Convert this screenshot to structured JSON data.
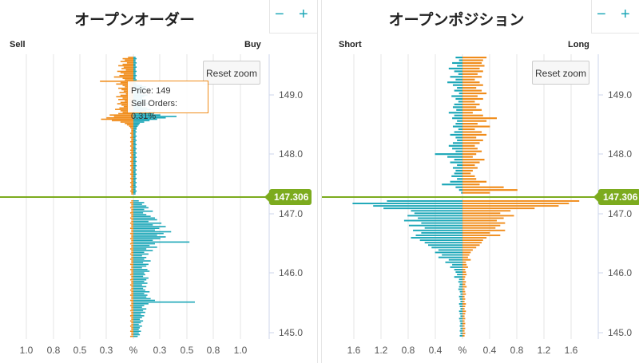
{
  "colors": {
    "sell": "#f08c1a",
    "buy": "#1aa6b7",
    "price_line": "#7cab1e",
    "grid": "#e6e6e6"
  },
  "zoom": {
    "minus": "−",
    "plus": "+"
  },
  "reset_zoom_label": "Reset zoom",
  "current_price": "147.306",
  "tooltip": {
    "price_line": "Price: 149",
    "value_line": "Sell Orders: 0.31%"
  },
  "chart_data": [
    {
      "type": "bar",
      "title": "オープンオーダー",
      "left_label": "Sell",
      "right_label": "Buy",
      "y_ticks": [
        "149.0",
        "148.0",
        "147.0",
        "146.0",
        "145.0"
      ],
      "x_ticks": [
        "1.0",
        "0.8",
        "0.5",
        "0.3",
        "%",
        "0.3",
        "0.5",
        "0.8",
        "1.0"
      ],
      "current_price": 147.306,
      "series": [
        {
          "name": "Sell",
          "values": [
            0.05,
            0.1,
            0.08,
            0.12,
            0.06,
            0.1,
            0.14,
            0.09,
            0.11,
            0.07,
            0.15,
            0.12,
            0.09,
            0.13,
            0.18,
            0.1,
            0.08,
            0.31,
            0.12,
            0.16,
            0.1,
            0.08,
            0.14,
            0.11,
            0.09,
            0.13,
            0.07,
            0.12,
            0.16,
            0.1,
            0.14,
            0.08,
            0.12,
            0.15,
            0.11,
            0.09,
            0.13,
            0.17,
            0.12,
            0.1,
            0.14,
            0.22,
            0.18,
            0.25,
            0.3,
            0.2,
            0.12,
            0.08,
            0.06,
            0.04,
            0.03,
            0.02,
            0.02,
            0.02,
            0.03,
            0.02,
            0.02,
            0.03,
            0.02,
            0.02,
            0.03,
            0.02,
            0.02,
            0.03,
            0.02,
            0.02,
            0.03,
            0.02,
            0.03,
            0.02,
            0.02,
            0.03,
            0.02,
            0.02,
            0.03,
            0.02,
            0.02,
            0.03,
            0.02,
            0.02,
            0.03,
            0.02,
            0.02,
            0.03,
            0.02,
            0.02,
            0.03,
            0.02,
            0.02,
            0.03,
            0.02,
            0.02,
            0.03,
            0.02,
            0.02,
            0.03,
            0.02,
            0.02
          ]
        },
        {
          "name": "Buy",
          "values": [
            0.02,
            0.03,
            0.02,
            0.02,
            0.03,
            0.02,
            0.02,
            0.03,
            0.02,
            0.02,
            0.03,
            0.02,
            0.02,
            0.03,
            0.02,
            0.02,
            0.03,
            0.02,
            0.02,
            0.03,
            0.08,
            0.12,
            0.1,
            0.14,
            0.09,
            0.11,
            0.07,
            0.13,
            0.1,
            0.08,
            0.12,
            0.09,
            0.11,
            0.14,
            0.1,
            0.08,
            0.13,
            0.16,
            0.12,
            0.2,
            0.18,
            0.25,
            0.4,
            0.3,
            0.22,
            0.15,
            0.1,
            0.06,
            0.05,
            0.04,
            0.03,
            0.03,
            0.02,
            0.03,
            0.02,
            0.02,
            0.03,
            0.02,
            0.02,
            0.03,
            0.02,
            0.02,
            0.03,
            0.02,
            0.02,
            0.03,
            0.02,
            0.02,
            0.03,
            0.02,
            0.02,
            0.03,
            0.02,
            0.02,
            0.03,
            0.02,
            0.02,
            0.03,
            0.02,
            0.02,
            0.03,
            0.02,
            0.02,
            0.03,
            0.02,
            0.02,
            0.03,
            0.02,
            0.02,
            0.03,
            0.02,
            0.02,
            0.03,
            0.02,
            0.02,
            0.03,
            0.02,
            0.02
          ]
        }
      ],
      "series_lower": [
        {
          "name": "Sell",
          "values": [
            0.02,
            0.03,
            0.02,
            0.02,
            0.03,
            0.02,
            0.02,
            0.03,
            0.02,
            0.02,
            0.03,
            0.02,
            0.02,
            0.03,
            0.02,
            0.02,
            0.03,
            0.02,
            0.02,
            0.03,
            0.02,
            0.02,
            0.03,
            0.02,
            0.02,
            0.03,
            0.02,
            0.02,
            0.03,
            0.02,
            0.02,
            0.03,
            0.02,
            0.02,
            0.03,
            0.02,
            0.02,
            0.03,
            0.02,
            0.02,
            0.03,
            0.02,
            0.02,
            0.03,
            0.02,
            0.02,
            0.03,
            0.02,
            0.02,
            0.03,
            0.02,
            0.02,
            0.03,
            0.02,
            0.02,
            0.03,
            0.02,
            0.02,
            0.03,
            0.02,
            0.02,
            0.03,
            0.02,
            0.02,
            0.03,
            0.02,
            0.02,
            0.03,
            0.02,
            0.02,
            0.03,
            0.02,
            0.02,
            0.03,
            0.02,
            0.02,
            0.03,
            0.02,
            0.02,
            0.03
          ]
        },
        {
          "name": "Buy",
          "values": [
            0.05,
            0.1,
            0.08,
            0.12,
            0.14,
            0.1,
            0.18,
            0.09,
            0.12,
            0.16,
            0.2,
            0.22,
            0.14,
            0.26,
            0.18,
            0.3,
            0.24,
            0.2,
            0.35,
            0.28,
            0.22,
            0.3,
            0.25,
            0.18,
            0.52,
            0.2,
            0.15,
            0.22,
            0.12,
            0.18,
            0.1,
            0.14,
            0.08,
            0.12,
            0.1,
            0.16,
            0.09,
            0.14,
            0.12,
            0.08,
            0.13,
            0.15,
            0.1,
            0.11,
            0.09,
            0.14,
            0.12,
            0.1,
            0.13,
            0.08,
            0.12,
            0.09,
            0.11,
            0.15,
            0.1,
            0.13,
            0.12,
            0.16,
            0.2,
            0.57,
            0.14,
            0.1,
            0.08,
            0.12,
            0.09,
            0.11,
            0.07,
            0.1,
            0.08,
            0.06,
            0.09,
            0.07,
            0.05,
            0.08,
            0.06,
            0.05,
            0.07,
            0.05,
            0.06,
            0.04
          ]
        }
      ]
    },
    {
      "type": "bar",
      "title": "オープンポジション",
      "left_label": "Short",
      "right_label": "Long",
      "y_ticks": [
        "149.0",
        "148.0",
        "147.0",
        "146.0",
        "145.0"
      ],
      "x_ticks": [
        "1.6",
        "1.2",
        "0.8",
        "0.4",
        "%",
        "0.4",
        "0.8",
        "1.2",
        "1.6"
      ],
      "current_price": 147.306,
      "series": [
        {
          "name": "Short",
          "values": [
            0.1,
            0.05,
            0.15,
            0.08,
            0.2,
            0.12,
            0.06,
            0.18,
            0.1,
            0.22,
            0.14,
            0.08,
            0.12,
            0.05,
            0.16,
            0.1,
            0.06,
            0.12,
            0.14,
            0.09,
            0.2,
            0.12,
            0.15,
            0.08,
            0.1,
            0.14,
            0.06,
            0.12,
            0.18,
            0.1,
            0.08,
            0.14,
            0.2,
            0.15,
            0.1,
            0.4,
            0.22,
            0.12,
            0.18,
            0.08,
            0.14,
            0.1,
            0.12,
            0.16,
            0.08,
            0.18,
            0.3,
            0.1,
            0.05,
            0.02
          ]
        },
        {
          "name": "Long",
          "values": [
            0.35,
            0.3,
            0.28,
            0.32,
            0.25,
            0.3,
            0.22,
            0.28,
            0.18,
            0.25,
            0.3,
            0.2,
            0.28,
            0.35,
            0.22,
            0.3,
            0.18,
            0.25,
            0.2,
            0.28,
            0.15,
            0.3,
            0.5,
            0.35,
            0.22,
            0.4,
            0.18,
            0.28,
            0.35,
            0.2,
            0.3,
            0.25,
            0.18,
            0.22,
            0.28,
            0.2,
            0.15,
            0.32,
            0.25,
            0.18,
            0.22,
            0.15,
            0.12,
            0.18,
            0.2,
            0.35,
            0.25,
            0.6,
            0.8,
            0.4
          ]
        }
      ],
      "series_lower": [
        {
          "name": "Short",
          "values": [
            1.1,
            1.6,
            1.3,
            1.15,
            0.75,
            0.7,
            0.8,
            0.65,
            0.85,
            0.6,
            0.78,
            0.55,
            0.72,
            0.6,
            0.68,
            0.75,
            0.62,
            0.55,
            0.5,
            0.45,
            0.35,
            0.4,
            0.3,
            0.35,
            0.2,
            0.25,
            0.15,
            0.18,
            0.12,
            0.1,
            0.08,
            0.12,
            0.05,
            0.06,
            0.04,
            0.05,
            0.06,
            0.04,
            0.03,
            0.05,
            0.04,
            0.03,
            0.05,
            0.04,
            0.03,
            0.05,
            0.04,
            0.03,
            0.05,
            0.04,
            0.03,
            0.04,
            0.03,
            0.04,
            0.03,
            0.04
          ]
        },
        {
          "name": "Long",
          "values": [
            1.7,
            1.55,
            1.4,
            1.05,
            0.7,
            0.55,
            0.75,
            0.6,
            0.5,
            0.62,
            0.55,
            0.48,
            0.62,
            0.4,
            0.55,
            0.35,
            0.3,
            0.28,
            0.25,
            0.2,
            0.15,
            0.12,
            0.1,
            0.08,
            0.12,
            0.05,
            0.06,
            0.08,
            0.04,
            0.05,
            0.06,
            0.04,
            0.03,
            0.05,
            0.04,
            0.06,
            0.03,
            0.04,
            0.05,
            0.03,
            0.04,
            0.03,
            0.05,
            0.04,
            0.03,
            0.05,
            0.04,
            0.03,
            0.04,
            0.03,
            0.04,
            0.03,
            0.04,
            0.03,
            0.04,
            0.03
          ]
        }
      ]
    }
  ]
}
